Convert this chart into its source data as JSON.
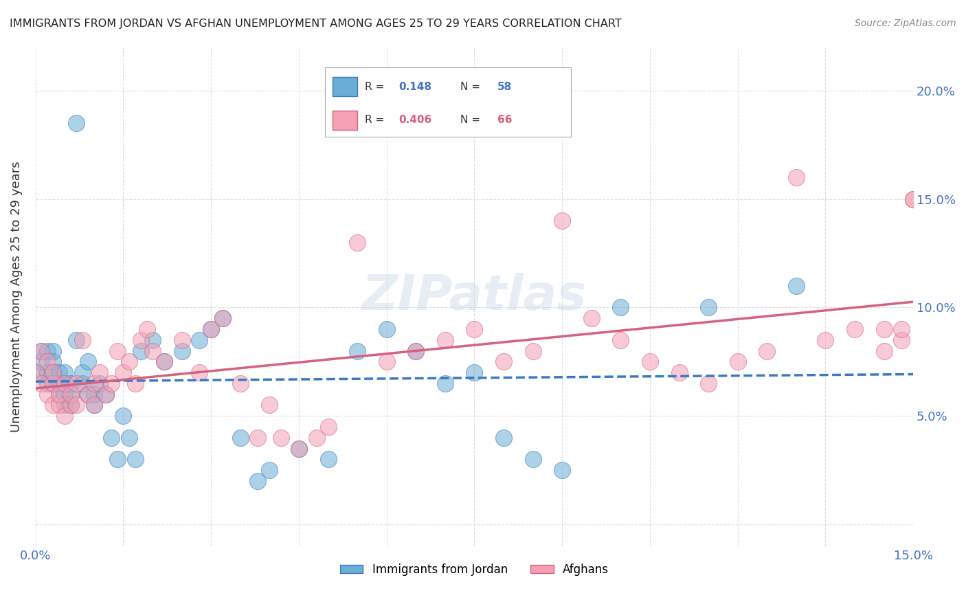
{
  "title": "IMMIGRANTS FROM JORDAN VS AFGHAN UNEMPLOYMENT AMONG AGES 25 TO 29 YEARS CORRELATION CHART",
  "source": "Source: ZipAtlas.com",
  "ylabel": "Unemployment Among Ages 25 to 29 years",
  "xlabel": "",
  "xlim": [
    0.0,
    0.15
  ],
  "ylim": [
    -0.01,
    0.22
  ],
  "xticks": [
    0.0,
    0.015,
    0.03,
    0.045,
    0.06,
    0.075,
    0.09,
    0.105,
    0.12,
    0.135,
    0.15
  ],
  "xtick_labels": [
    "0.0%",
    "",
    "",
    "",
    "",
    "",
    "",
    "",
    "",
    "",
    "15.0%"
  ],
  "yticks": [
    0.0,
    0.05,
    0.1,
    0.15,
    0.2
  ],
  "ytick_labels": [
    "",
    "5.0%",
    "10.0%",
    "15.0%",
    "20.0%"
  ],
  "legend_label1": "Immigrants from Jordan",
  "legend_label2": "Afghans",
  "color_jordan": "#6aaed6",
  "color_afghan": "#f4a0b5",
  "color_jordan_line": "#3a7abf",
  "color_afghan_dark": "#d6617e",
  "watermark": "ZIPatlas",
  "jordan_x": [
    0.0,
    0.001,
    0.001,
    0.002,
    0.002,
    0.002,
    0.003,
    0.003,
    0.003,
    0.003,
    0.004,
    0.004,
    0.004,
    0.005,
    0.005,
    0.005,
    0.005,
    0.006,
    0.006,
    0.006,
    0.007,
    0.007,
    0.008,
    0.008,
    0.009,
    0.009,
    0.01,
    0.01,
    0.011,
    0.012,
    0.013,
    0.014,
    0.015,
    0.016,
    0.017,
    0.018,
    0.02,
    0.022,
    0.025,
    0.028,
    0.03,
    0.032,
    0.035,
    0.038,
    0.04,
    0.045,
    0.05,
    0.055,
    0.06,
    0.065,
    0.07,
    0.075,
    0.08,
    0.085,
    0.09,
    0.1,
    0.115,
    0.13
  ],
  "jordan_y": [
    0.07,
    0.08,
    0.075,
    0.065,
    0.07,
    0.08,
    0.065,
    0.07,
    0.075,
    0.08,
    0.06,
    0.065,
    0.07,
    0.055,
    0.06,
    0.065,
    0.07,
    0.055,
    0.06,
    0.065,
    0.185,
    0.085,
    0.065,
    0.07,
    0.06,
    0.075,
    0.055,
    0.06,
    0.065,
    0.06,
    0.04,
    0.03,
    0.05,
    0.04,
    0.03,
    0.08,
    0.085,
    0.075,
    0.08,
    0.085,
    0.09,
    0.095,
    0.04,
    0.02,
    0.025,
    0.035,
    0.03,
    0.08,
    0.09,
    0.08,
    0.065,
    0.07,
    0.04,
    0.03,
    0.025,
    0.1,
    0.1,
    0.11
  ],
  "afghan_x": [
    0.0,
    0.001,
    0.001,
    0.002,
    0.002,
    0.003,
    0.003,
    0.003,
    0.004,
    0.004,
    0.005,
    0.005,
    0.006,
    0.006,
    0.007,
    0.007,
    0.008,
    0.009,
    0.01,
    0.01,
    0.011,
    0.012,
    0.013,
    0.014,
    0.015,
    0.016,
    0.017,
    0.018,
    0.019,
    0.02,
    0.022,
    0.025,
    0.028,
    0.03,
    0.032,
    0.035,
    0.038,
    0.04,
    0.042,
    0.045,
    0.048,
    0.05,
    0.055,
    0.06,
    0.065,
    0.07,
    0.075,
    0.08,
    0.085,
    0.09,
    0.095,
    0.1,
    0.105,
    0.11,
    0.115,
    0.12,
    0.125,
    0.13,
    0.135,
    0.14,
    0.145,
    0.145,
    0.148,
    0.148,
    0.15,
    0.15
  ],
  "afghan_y": [
    0.07,
    0.065,
    0.08,
    0.06,
    0.075,
    0.055,
    0.065,
    0.07,
    0.055,
    0.06,
    0.05,
    0.065,
    0.055,
    0.06,
    0.055,
    0.065,
    0.085,
    0.06,
    0.055,
    0.065,
    0.07,
    0.06,
    0.065,
    0.08,
    0.07,
    0.075,
    0.065,
    0.085,
    0.09,
    0.08,
    0.075,
    0.085,
    0.07,
    0.09,
    0.095,
    0.065,
    0.04,
    0.055,
    0.04,
    0.035,
    0.04,
    0.045,
    0.13,
    0.075,
    0.08,
    0.085,
    0.09,
    0.075,
    0.08,
    0.14,
    0.095,
    0.085,
    0.075,
    0.07,
    0.065,
    0.075,
    0.08,
    0.16,
    0.085,
    0.09,
    0.08,
    0.09,
    0.085,
    0.09,
    0.15,
    0.15
  ]
}
